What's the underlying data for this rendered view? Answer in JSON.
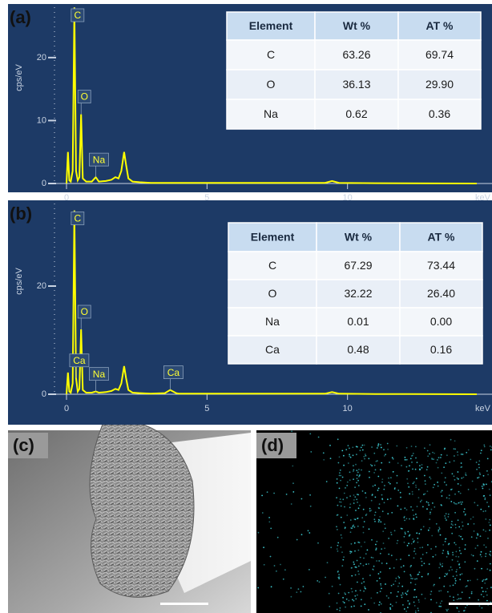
{
  "chart_data": [
    {
      "type": "line",
      "label": "(a)",
      "xlabel": "keV",
      "ylabel": "cps/eV",
      "color": "#ffff00",
      "xlim": [
        0,
        14.6
      ],
      "ylim": [
        0,
        28
      ],
      "xticks": [
        0,
        5,
        10
      ],
      "yticks": [
        0,
        10,
        20
      ],
      "x": [
        0,
        0.05,
        0.1,
        0.15,
        0.22,
        0.28,
        0.34,
        0.4,
        0.46,
        0.52,
        0.58,
        0.7,
        0.9,
        1.04,
        1.15,
        1.4,
        1.6,
        1.74,
        1.85,
        1.95,
        2.05,
        2.12,
        2.2,
        2.35,
        2.6,
        3.0,
        4,
        6,
        8,
        9.2,
        9.45,
        9.7,
        11,
        14.6
      ],
      "values": [
        0,
        5,
        0.5,
        0.3,
        2,
        28,
        2,
        0.5,
        1,
        11,
        0.8,
        0.3,
        0.3,
        1,
        0.3,
        0.4,
        0.6,
        1,
        0.8,
        2,
        5,
        3,
        0.8,
        0.3,
        0.2,
        0.1,
        0.1,
        0.1,
        0.1,
        0.1,
        0.4,
        0.1,
        0.05,
        0
      ],
      "point_labels": [
        null,
        null,
        null,
        null,
        null,
        "C",
        null,
        null,
        null,
        "O",
        null,
        null,
        null,
        "Na",
        null,
        null,
        null,
        null,
        null,
        null,
        null,
        null,
        null,
        null,
        null,
        null,
        null,
        null,
        null,
        null,
        null,
        null,
        null,
        null
      ],
      "table": {
        "columns": [
          "Element",
          "Wt %",
          "AT %"
        ],
        "rows": [
          [
            "C",
            "63.26",
            "69.74"
          ],
          [
            "O",
            "36.13",
            "29.90"
          ],
          [
            "Na",
            "0.62",
            "0.36"
          ]
        ]
      }
    },
    {
      "type": "line",
      "label": "(b)",
      "xlabel": "keV",
      "ylabel": "cps/eV",
      "color": "#ffff00",
      "xlim": [
        0,
        14.6
      ],
      "ylim": [
        0,
        34
      ],
      "xticks": [
        0,
        5,
        10
      ],
      "yticks": [
        0,
        20
      ],
      "x": [
        0,
        0.05,
        0.1,
        0.15,
        0.22,
        0.28,
        0.34,
        0.4,
        0.46,
        0.52,
        0.58,
        0.7,
        0.9,
        1.04,
        1.15,
        1.4,
        1.6,
        1.74,
        1.85,
        1.95,
        2.05,
        2.12,
        2.2,
        2.35,
        2.6,
        3.0,
        3.5,
        3.69,
        3.9,
        4,
        6,
        8,
        9.2,
        9.45,
        9.7,
        11,
        14.6
      ],
      "values": [
        0,
        4,
        0.5,
        0.3,
        2,
        34,
        3,
        0.5,
        1,
        12,
        0.8,
        0.3,
        0.3,
        0.5,
        0.3,
        0.4,
        0.6,
        1,
        0.8,
        2,
        5.2,
        3,
        0.8,
        0.3,
        0.2,
        0.1,
        0.2,
        0.8,
        0.2,
        0.1,
        0.1,
        0.1,
        0.1,
        0.4,
        0.1,
        0.05,
        0
      ],
      "point_labels": [
        null,
        null,
        null,
        null,
        null,
        "C",
        "Ca",
        null,
        null,
        "O",
        null,
        null,
        null,
        "Na",
        null,
        null,
        null,
        null,
        null,
        null,
        null,
        null,
        null,
        null,
        null,
        null,
        null,
        "Ca",
        null,
        null,
        null,
        null,
        null,
        null,
        null,
        null,
        null
      ],
      "table": {
        "columns": [
          "Element",
          "Wt %",
          "AT %"
        ],
        "rows": [
          [
            "C",
            "67.29",
            "73.44"
          ],
          [
            "O",
            "32.22",
            "26.40"
          ],
          [
            "Na",
            "0.01",
            "0.00"
          ],
          [
            "Ca",
            "0.48",
            "0.16"
          ]
        ]
      }
    }
  ],
  "images": [
    {
      "label": "(c)"
    },
    {
      "label": "(d)"
    }
  ]
}
